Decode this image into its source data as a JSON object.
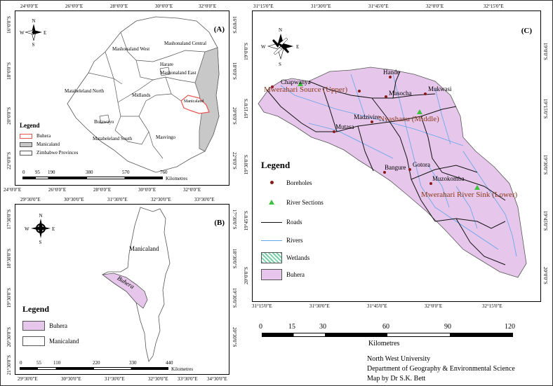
{
  "panel_a": {
    "label": "(A)",
    "top_coords": [
      "24°0'0\"E",
      "26°0'0\"E",
      "28°0'0\"E",
      "30°0'0\"E",
      "32°0'0\"E"
    ],
    "bottom_coords": [
      "24°0'0\"E",
      "26°0'0\"E",
      "28°0'0\"E",
      "30°0'0\"E",
      "32°0'0\"E"
    ],
    "left_coords": [
      "16°0'0\"S",
      "18°0'0\"S",
      "20°0'0\"S",
      "22°0'0\"S"
    ],
    "right_coords": [
      "16°0'0\"S",
      "18°0'0\"S",
      "20°0'0\"S",
      "22°0'0\"S"
    ],
    "places": [
      "Mashonaland Central",
      "Mashonaland West",
      "Harare",
      "Mashonaland East",
      "Matabeleland North",
      "Midlands",
      "Manicaland",
      "Bulawayo",
      "Matabeleland South",
      "Masvingo"
    ],
    "legend": {
      "title": "Legend",
      "items": [
        "Buhera",
        "Manicaland",
        "Zimbabwe Provinces"
      ]
    },
    "scale": {
      "ticks": [
        "0",
        "95",
        "190",
        "380",
        "570",
        "760"
      ],
      "unit": "Kilometres"
    }
  },
  "panel_b": {
    "label": "(B)",
    "top_coords": [
      "29°30'0\"E",
      "30°30'0\"E",
      "31°30'0\"E",
      "32°30'0\"E",
      "33°30'0\"E"
    ],
    "bottom_coords": [
      "29°30'0\"E",
      "30°30'0\"E",
      "31°30'0\"E",
      "32°30'0\"E",
      "33°30'0\"E",
      "34°30'0\"E"
    ],
    "left_coords": [
      "17°30'0\"S",
      "18°30'0\"S",
      "19°30'0\"S",
      "20°30'0\"S",
      "21°30'0\"S"
    ],
    "right_coords": [
      "17°30'0\"S",
      "18°30'0\"S",
      "19°30'0\"S",
      "20°30'0\"S"
    ],
    "places": [
      "Manicaland",
      "Buhera"
    ],
    "legend": {
      "title": "Legend",
      "items": [
        "Buhera",
        "Manicaland"
      ]
    },
    "scale": {
      "ticks": [
        "0",
        "55",
        "110",
        "220",
        "330",
        "440"
      ],
      "unit": "Kilometres"
    }
  },
  "panel_c": {
    "label": "(C)",
    "top_coords": [
      "31°15'0\"E",
      "31°30'0\"E",
      "31°45'0\"E",
      "32°0'0\"E",
      "32°15'0\"E"
    ],
    "bottom_coords": [
      "31°15'0\"E",
      "31°30'0\"E",
      "31°45'0\"E",
      "32°0'0\"E",
      "32°15'0\"E"
    ],
    "left_coords": [
      "19°0'0\"S",
      "19°15'0\"S",
      "19°30'0\"S",
      "19°45'0\"S",
      "20°0'0\"S"
    ],
    "right_coords": [
      "19°0'0\"S",
      "19°15'0\"S",
      "19°30'0\"S",
      "19°45'0\"S",
      "20°0'0\"S"
    ],
    "boreholes": [
      "Chapwanya",
      "Hande",
      "Masocha",
      "Mukwasi",
      "Madzivire",
      "Mutasa",
      "Gotora",
      "Bangure",
      "Muzokomba"
    ],
    "sections": [
      "Mwerahari Source (Upper)",
      "Nyashanu (Middle)",
      "Mwerahari River Sink (Lower)"
    ],
    "legend": {
      "title": "Legend",
      "items": [
        "Boreholes",
        "River Sections",
        "Roads",
        "Rivers",
        "Wetlands",
        "Buhera"
      ]
    },
    "scale": {
      "ticks": [
        "0",
        "15",
        "30",
        "60",
        "90",
        "120"
      ],
      "unit": "Kilometres"
    }
  },
  "credits": [
    "North West University",
    "Department of Geography & Environmental Science",
    "Map by Dr S.K. Bett"
  ],
  "colors": {
    "buhera": "#e6c6ea",
    "manicaland": "#c8c8c8",
    "buhera_outline_a": "#e8554e",
    "rivers": "#5fa6e8",
    "roads": "#111111",
    "boreholes": "#8b1a1a",
    "sections": "#3cc23c",
    "section_label": "#8b3a1a",
    "wetlands": "#7ad0a8"
  }
}
